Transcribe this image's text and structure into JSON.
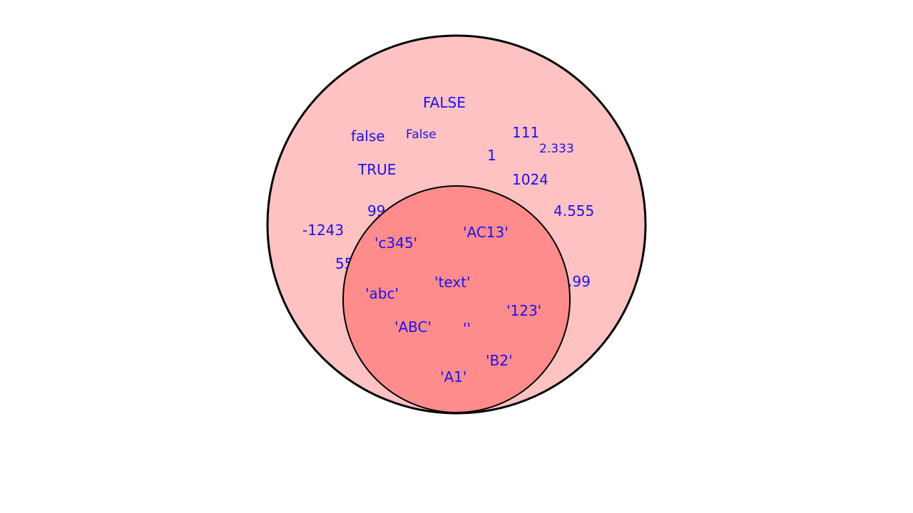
{
  "colors": {
    "outer_fill": "#ffc2c2",
    "inner_fill": "#ff8c8c",
    "stroke": "#000000",
    "text": "#1f0fef"
  },
  "outer_set": {
    "labels": [
      "FALSE",
      "false",
      "False",
      "TRUE",
      "111",
      "2.333",
      "1",
      "1024",
      "99",
      "4.555",
      "-1243",
      "55",
      ".99"
    ]
  },
  "inner_set": {
    "labels": [
      "'c345'",
      "'AC13'",
      "'text'",
      "'abc'",
      "'123'",
      "'ABC'",
      "''",
      "'B2'",
      "'A1'"
    ]
  }
}
